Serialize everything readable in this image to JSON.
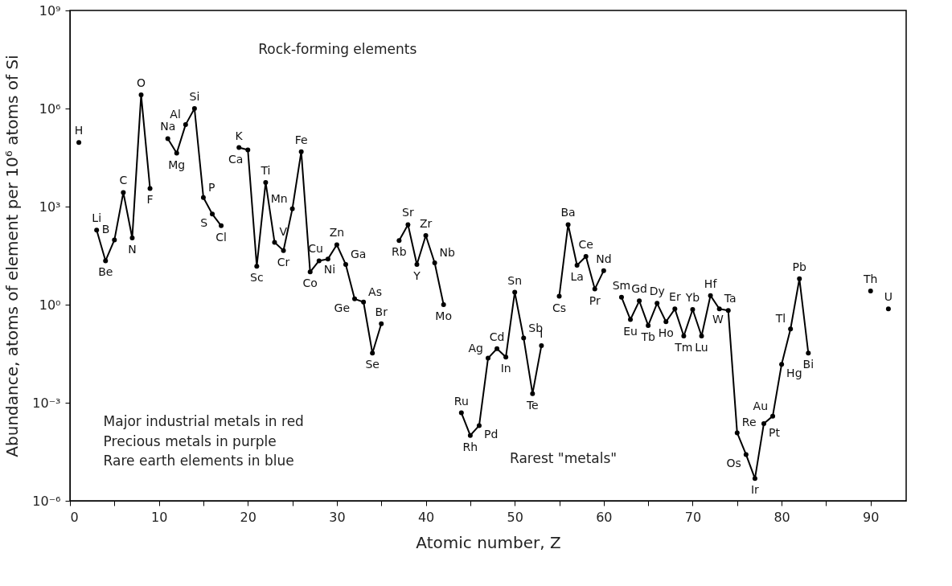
{
  "chart_data": {
    "type": "line",
    "xlabel": "Atomic number, Z",
    "ylabel": "Abundance, atoms of element per 10⁶ atoms of Si",
    "log": "y",
    "grid": false,
    "marker": "circle",
    "line_style": "solid",
    "xlim": [
      0,
      94
    ],
    "ylim": [
      1e-06,
      1000000000.0
    ],
    "xticks": [
      0,
      {
        "value": 5,
        "label": null
      },
      10,
      {
        "value": 15,
        "label": null
      },
      20,
      {
        "value": 25,
        "label": null
      },
      30,
      {
        "value": 35,
        "label": null
      },
      40,
      {
        "value": 45,
        "label": null
      },
      50,
      {
        "value": 55,
        "label": null
      },
      60,
      {
        "value": 65,
        "label": null
      },
      70,
      {
        "value": 75,
        "label": null
      },
      80,
      {
        "value": 85,
        "label": null
      },
      90
    ],
    "yticks": [
      {
        "value": 1e-06,
        "label": "10⁻⁶"
      },
      {
        "value": 0.001,
        "label": "10⁻³"
      },
      {
        "value": 1,
        "label": "10⁰"
      },
      {
        "value": 1000,
        "label": "10³"
      },
      {
        "value": 1000000,
        "label": "10⁶"
      },
      {
        "value": 1000000000,
        "label": "10⁹"
      }
    ],
    "x": [
      1,
      2,
      3,
      4,
      5,
      6,
      7,
      8,
      9,
      10,
      11,
      12,
      13,
      14,
      15,
      16,
      17,
      18,
      19,
      20,
      21,
      22,
      23,
      24,
      25,
      26,
      27,
      28,
      29,
      30,
      31,
      32,
      33,
      34,
      35,
      36,
      37,
      38,
      39,
      40,
      41,
      42,
      43,
      44,
      45,
      46,
      47,
      48,
      49,
      50,
      51,
      52,
      53,
      54,
      55,
      56,
      57,
      58,
      59,
      60,
      61,
      62,
      63,
      64,
      65,
      66,
      67,
      68,
      69,
      70,
      71,
      72,
      73,
      74,
      75,
      76,
      77,
      78,
      79,
      80,
      81,
      82,
      83,
      84,
      90,
      91,
      92
    ],
    "series": [
      {
        "color": "#000000",
        "values": [
          91000,
          null,
          190,
          22,
          96,
          2700,
          110,
          2600000,
          3600,
          null,
          120000,
          43000,
          320000,
          1000000,
          1900,
          590,
          260,
          null,
          64000,
          54000,
          15,
          5500,
          81,
          45,
          850,
          48000,
          10,
          22,
          25,
          68,
          17,
          1.5,
          1.2,
          0.033,
          0.26,
          null,
          91,
          280,
          17,
          130,
          19,
          1.0,
          null,
          0.00049,
          0.0001,
          0.0002,
          0.023,
          0.045,
          0.025,
          2.4,
          0.095,
          0.0019,
          0.056,
          null,
          1.8,
          280,
          16,
          30,
          3.0,
          11,
          null,
          1.7,
          0.35,
          1.3,
          0.23,
          1.1,
          0.3,
          0.74,
          0.11,
          0.71,
          0.11,
          1.9,
          0.74,
          0.66,
          0.00012,
          2.6e-05,
          4.8e-06,
          0.00023,
          0.00039,
          0.015,
          0.18,
          6.2,
          0.033,
          null,
          2.6,
          null,
          0.74
        ]
      }
    ],
    "annotations": [
      "Rock-forming elements",
      "Rarest \"metals\"",
      "Major industrial metals in red",
      "Precious metals in purple",
      "Rare earth elements in blue",
      {
        "text": "H",
        "x": 1,
        "y": 91000
      },
      {
        "text": "Li",
        "x": 3,
        "y": 190
      },
      {
        "text": "Be",
        "x": 4,
        "y": 22
      },
      {
        "text": "B",
        "x": 5,
        "y": 96
      },
      {
        "text": "C",
        "x": 6,
        "y": 2700
      },
      {
        "text": "N",
        "x": 7,
        "y": 110
      },
      {
        "text": "O",
        "x": 8,
        "y": 2600000
      },
      {
        "text": "F",
        "x": 9,
        "y": 3600
      },
      {
        "text": "Na",
        "x": 11,
        "y": 120000
      },
      {
        "text": "Mg",
        "x": 12,
        "y": 43000
      },
      {
        "text": "Al",
        "x": 13,
        "y": 320000
      },
      {
        "text": "Si",
        "x": 14,
        "y": 1000000
      },
      {
        "text": "P",
        "x": 15,
        "y": 1900
      },
      {
        "text": "S",
        "x": 16,
        "y": 590
      },
      {
        "text": "Cl",
        "x": 17,
        "y": 260
      },
      {
        "text": "K",
        "x": 19,
        "y": 64000
      },
      {
        "text": "Ca",
        "x": 20,
        "y": 54000
      },
      {
        "text": "Sc",
        "x": 21,
        "y": 15
      },
      {
        "text": "Ti",
        "x": 22,
        "y": 5500
      },
      {
        "text": "V",
        "x": 23,
        "y": 81
      },
      {
        "text": "Cr",
        "x": 24,
        "y": 45
      },
      {
        "text": "Mn",
        "x": 25,
        "y": 850
      },
      {
        "text": "Fe",
        "x": 26,
        "y": 48000
      },
      {
        "text": "Co",
        "x": 27,
        "y": 10
      },
      {
        "text": "Ni",
        "x": 28,
        "y": 22
      },
      {
        "text": "Cu",
        "x": 29,
        "y": 25
      },
      {
        "text": "Zn",
        "x": 30,
        "y": 68
      },
      {
        "text": "Ga",
        "x": 31,
        "y": 17
      },
      {
        "text": "Ge",
        "x": 32,
        "y": 1.5
      },
      {
        "text": "As",
        "x": 33,
        "y": 1.2
      },
      {
        "text": "Se",
        "x": 34,
        "y": 0.033
      },
      {
        "text": "Br",
        "x": 35,
        "y": 0.26
      },
      {
        "text": "Rb",
        "x": 37,
        "y": 91
      },
      {
        "text": "Sr",
        "x": 38,
        "y": 280
      },
      {
        "text": "Y",
        "x": 39,
        "y": 17
      },
      {
        "text": "Zr",
        "x": 40,
        "y": 130
      },
      {
        "text": "Nb",
        "x": 41,
        "y": 19
      },
      {
        "text": "Mo",
        "x": 42,
        "y": 1.0
      },
      {
        "text": "Ru",
        "x": 44,
        "y": 0.00049
      },
      {
        "text": "Rh",
        "x": 45,
        "y": 0.0001
      },
      {
        "text": "Pd",
        "x": 46,
        "y": 0.0002
      },
      {
        "text": "Ag",
        "x": 47,
        "y": 0.023
      },
      {
        "text": "Cd",
        "x": 48,
        "y": 0.045
      },
      {
        "text": "In",
        "x": 49,
        "y": 0.025
      },
      {
        "text": "Sn",
        "x": 50,
        "y": 2.4
      },
      {
        "text": "Sb",
        "x": 51,
        "y": 0.095
      },
      {
        "text": "Te",
        "x": 52,
        "y": 0.0019
      },
      {
        "text": "I",
        "x": 53,
        "y": 0.056
      },
      {
        "text": "Cs",
        "x": 55,
        "y": 1.8
      },
      {
        "text": "Ba",
        "x": 56,
        "y": 280
      },
      {
        "text": "La",
        "x": 57,
        "y": 16
      },
      {
        "text": "Ce",
        "x": 58,
        "y": 30
      },
      {
        "text": "Pr",
        "x": 59,
        "y": 3.0
      },
      {
        "text": "Nd",
        "x": 60,
        "y": 11
      },
      {
        "text": "Sm",
        "x": 62,
        "y": 1.7
      },
      {
        "text": "Eu",
        "x": 63,
        "y": 0.35
      },
      {
        "text": "Gd",
        "x": 64,
        "y": 1.3
      },
      {
        "text": "Tb",
        "x": 65,
        "y": 0.23
      },
      {
        "text": "Dy",
        "x": 66,
        "y": 1.1
      },
      {
        "text": "Ho",
        "x": 67,
        "y": 0.3
      },
      {
        "text": "Er",
        "x": 68,
        "y": 0.74
      },
      {
        "text": "Tm",
        "x": 69,
        "y": 0.11
      },
      {
        "text": "Yb",
        "x": 70,
        "y": 0.71
      },
      {
        "text": "Lu",
        "x": 71,
        "y": 0.11
      },
      {
        "text": "Hf",
        "x": 72,
        "y": 1.9
      },
      {
        "text": "Ta",
        "x": 73,
        "y": 0.74
      },
      {
        "text": "W",
        "x": 74,
        "y": 0.66
      },
      {
        "text": "Re",
        "x": 75,
        "y": 0.00012
      },
      {
        "text": "Os",
        "x": 76,
        "y": 2.6e-05
      },
      {
        "text": "Ir",
        "x": 77,
        "y": 4.8e-06
      },
      {
        "text": "Pt",
        "x": 78,
        "y": 0.00023
      },
      {
        "text": "Au",
        "x": 79,
        "y": 0.00039
      },
      {
        "text": "Hg",
        "x": 80,
        "y": 0.015
      },
      {
        "text": "Tl",
        "x": 81,
        "y": 0.18
      },
      {
        "text": "Pb",
        "x": 82,
        "y": 6.2
      },
      {
        "text": "Bi",
        "x": 83,
        "y": 0.033
      },
      {
        "text": "Th",
        "x": 90,
        "y": 2.6
      },
      {
        "text": "U",
        "x": 92,
        "y": 0.74
      }
    ]
  }
}
